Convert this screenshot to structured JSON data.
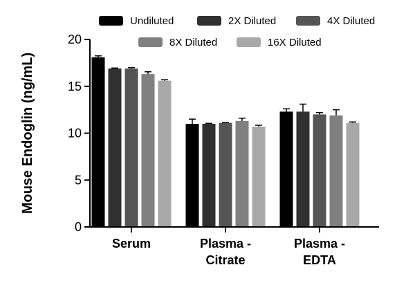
{
  "chart_data": {
    "type": "bar",
    "title": "",
    "xlabel": "",
    "ylabel": "Mouse Endoglin (ng/mL)",
    "ylim": [
      0,
      20
    ],
    "yticks": [
      0,
      5,
      10,
      15,
      20
    ],
    "grid": false,
    "legend_position": "top",
    "categories": [
      [
        "Serum"
      ],
      [
        "Plasma -",
        "Citrate"
      ],
      [
        "Plasma -",
        "EDTA"
      ]
    ],
    "series": [
      {
        "name": "Undiluted",
        "color": "#000000",
        "values": [
          18.1,
          11.0,
          12.3
        ],
        "errors": [
          0.15,
          0.5,
          0.3
        ]
      },
      {
        "name": "2X Diluted",
        "color": "#303030",
        "values": [
          16.9,
          11.0,
          12.3
        ],
        "errors": [
          0.05,
          0.05,
          0.8
        ]
      },
      {
        "name": "4X Diluted",
        "color": "#555555",
        "values": [
          16.9,
          11.1,
          12.0
        ],
        "errors": [
          0.1,
          0.05,
          0.2
        ]
      },
      {
        "name": "8X Diluted",
        "color": "#808080",
        "values": [
          16.3,
          11.3,
          11.9
        ],
        "errors": [
          0.25,
          0.3,
          0.6
        ]
      },
      {
        "name": "16X Diluted",
        "color": "#a9a9a9",
        "values": [
          15.6,
          10.7,
          11.1
        ],
        "errors": [
          0.1,
          0.15,
          0.1
        ]
      }
    ]
  }
}
